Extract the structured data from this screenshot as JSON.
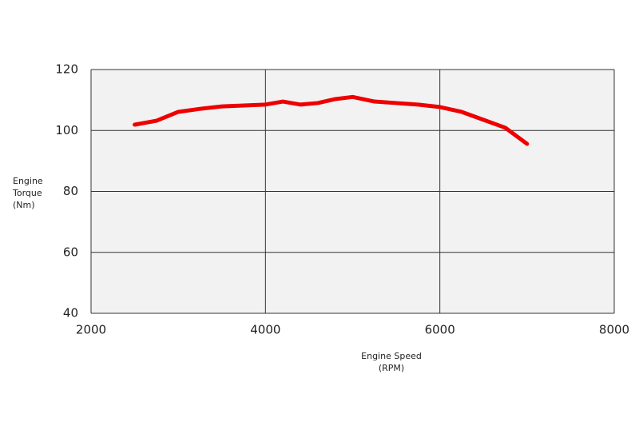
{
  "chart_data": {
    "type": "line",
    "xlabel": [
      "Engine Speed",
      "(RPM)"
    ],
    "ylabel": [
      "Engine",
      "Torque",
      "(Nm)"
    ],
    "x": [
      2500,
      2750,
      3000,
      3250,
      3500,
      3750,
      4000,
      4200,
      4400,
      4600,
      4800,
      5000,
      5250,
      5500,
      5750,
      6000,
      6250,
      6500,
      6750,
      7000
    ],
    "series": [
      {
        "name": "Engine Torque",
        "color": "#ee0000",
        "values": [
          101.9,
          103.2,
          106.1,
          107.1,
          107.9,
          108.2,
          108.5,
          109.5,
          108.5,
          109,
          110.3,
          111,
          109.5,
          109,
          108.5,
          107.7,
          106.1,
          103.5,
          100.9,
          95.6
        ]
      }
    ],
    "xlim": [
      2000,
      8000
    ],
    "xticks": [
      2000,
      4000,
      6000,
      8000
    ],
    "ylim": [
      40,
      120
    ],
    "yticks": [
      40,
      60,
      80,
      100,
      120
    ],
    "grid": true
  }
}
